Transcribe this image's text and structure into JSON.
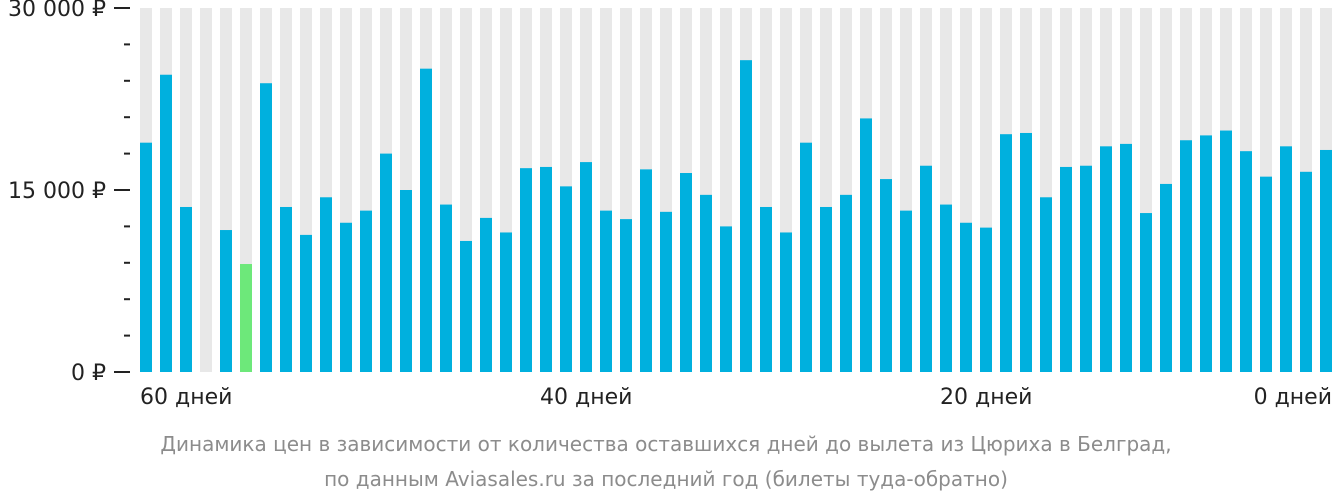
{
  "chart_data": {
    "type": "bar",
    "y_ticks": [
      "30 000 ₽",
      "15 000 ₽",
      "0 ₽"
    ],
    "ylim": [
      0,
      30000
    ],
    "x_labels": [
      {
        "label": "60 дней",
        "day": 60
      },
      {
        "label": "40 дней",
        "day": 40
      },
      {
        "label": "20 дней",
        "day": 20
      },
      {
        "label": "0 дней",
        "day": 0
      }
    ],
    "x_direction": "days remaining, decreasing left to right",
    "values": [
      18900,
      24500,
      13600,
      null,
      11700,
      8900,
      23800,
      13600,
      11300,
      14400,
      12300,
      13300,
      18000,
      15000,
      25000,
      13800,
      10800,
      12700,
      11500,
      16800,
      16900,
      15300,
      17300,
      13300,
      12600,
      16700,
      13200,
      16400,
      14600,
      12000,
      25700,
      13600,
      11500,
      18900,
      13600,
      14600,
      20900,
      15900,
      13300,
      17000,
      13800,
      12300,
      11900,
      19600,
      19700,
      14400,
      16900,
      17000,
      18600,
      18800,
      13100,
      15500,
      19100,
      19500,
      19900,
      18200,
      16100,
      18600,
      16500,
      18300
    ],
    "highlight_index": 5,
    "colors": {
      "bar": "#00b0de",
      "highlight": "#6de87a",
      "background_stripe": "#e8e8e8",
      "axis": "#222222"
    },
    "caption_line1": "Динамика цен в зависимости от количества оставшихся дней до вылета из Цюриха в Белград,",
    "caption_line2": "по данным Aviasales.ru за последний год (билеты туда-обратно)"
  }
}
